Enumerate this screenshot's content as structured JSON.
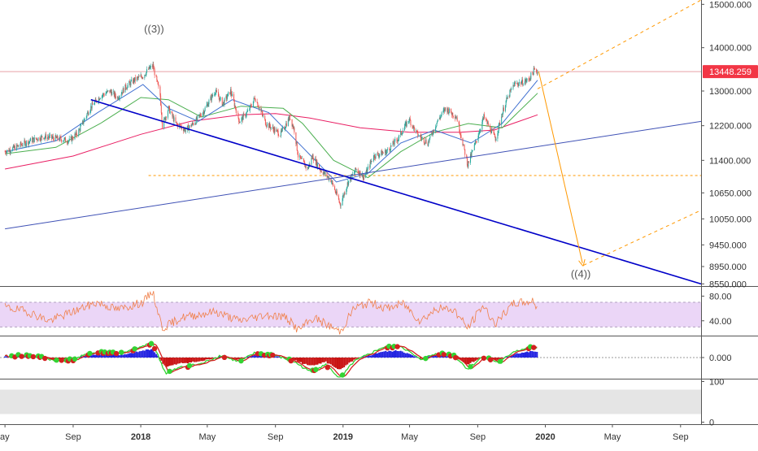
{
  "chart_data": [
    {
      "panel": "price",
      "type": "candlestick",
      "title": "",
      "scale": "linear",
      "grid": false,
      "y_tick_labels": [
        "15000.000",
        "14000.000",
        "13000.000",
        "12200.000",
        "11400.000",
        "10650.000",
        "10050.000",
        "9450.000",
        "8950.000",
        "8550.000"
      ],
      "y_ticks": [
        15000,
        14000,
        13000,
        12200,
        11400,
        10650,
        10050,
        9450,
        8950,
        8550
      ],
      "ylim": [
        8500,
        15100
      ],
      "last_price": 13448.259,
      "last_price_label": "13448.259",
      "annotations": [
        {
          "text": "((3))",
          "x": "2018-01-25",
          "y": 14350
        },
        {
          "text": "((4))",
          "x": "2020-03-05",
          "y": 8700
        }
      ],
      "price_path": [
        [
          "2017-05-01",
          11600
        ],
        [
          "2017-05-20",
          11700
        ],
        [
          "2017-06-15",
          11850
        ],
        [
          "2017-07-10",
          11950
        ],
        [
          "2017-08-05",
          11900
        ],
        [
          "2017-08-25",
          11850
        ],
        [
          "2017-09-10",
          12050
        ],
        [
          "2017-10-01",
          12600
        ],
        [
          "2017-10-20",
          12880
        ],
        [
          "2017-11-06",
          13000
        ],
        [
          "2017-11-20",
          12850
        ],
        [
          "2017-12-05",
          13100
        ],
        [
          "2017-12-20",
          13250
        ],
        [
          "2018-01-05",
          13350
        ],
        [
          "2018-01-15",
          13500
        ],
        [
          "2018-01-23",
          13580
        ],
        [
          "2018-02-05",
          12900
        ],
        [
          "2018-02-09",
          12200
        ],
        [
          "2018-02-20",
          12600
        ],
        [
          "2018-03-05",
          12250
        ],
        [
          "2018-03-23",
          12100
        ],
        [
          "2018-04-10",
          12300
        ],
        [
          "2018-04-25",
          12550
        ],
        [
          "2018-05-15",
          13000
        ],
        [
          "2018-05-29",
          12700
        ],
        [
          "2018-06-12",
          13000
        ],
        [
          "2018-06-28",
          12300
        ],
        [
          "2018-07-15",
          12550
        ],
        [
          "2018-07-26",
          12850
        ],
        [
          "2018-08-15",
          12250
        ],
        [
          "2018-09-10",
          12000
        ],
        [
          "2018-09-27",
          12400
        ],
        [
          "2018-10-05",
          12100
        ],
        [
          "2018-10-12",
          11500
        ],
        [
          "2018-10-29",
          11200
        ],
        [
          "2018-11-07",
          11500
        ],
        [
          "2018-11-20",
          11200
        ],
        [
          "2018-12-10",
          10950
        ],
        [
          "2018-12-27",
          10380
        ],
        [
          "2019-01-10",
          10900
        ],
        [
          "2019-01-25",
          11200
        ],
        [
          "2019-02-08",
          11000
        ],
        [
          "2019-02-25",
          11500
        ],
        [
          "2019-03-20",
          11600
        ],
        [
          "2019-04-10",
          11900
        ],
        [
          "2019-04-30",
          12350
        ],
        [
          "2019-05-15",
          12000
        ],
        [
          "2019-06-03",
          11800
        ],
        [
          "2019-06-20",
          12300
        ],
        [
          "2019-07-05",
          12600
        ],
        [
          "2019-07-25",
          12400
        ],
        [
          "2019-08-14",
          11300
        ],
        [
          "2019-08-28",
          11800
        ],
        [
          "2019-09-12",
          12400
        ],
        [
          "2019-10-03",
          11900
        ],
        [
          "2019-10-20",
          12700
        ],
        [
          "2019-11-05",
          13150
        ],
        [
          "2019-11-20",
          13200
        ],
        [
          "2019-12-01",
          13250
        ],
        [
          "2019-12-12",
          13480
        ],
        [
          "2019-12-18",
          13448
        ]
      ],
      "moving_averages": [
        {
          "color": "#e91e63",
          "points": [
            [
              "2017-05-01",
              11200
            ],
            [
              "2017-09-01",
              11500
            ],
            [
              "2018-01-01",
              12000
            ],
            [
              "2018-04-01",
              12300
            ],
            [
              "2018-07-01",
              12450
            ],
            [
              "2018-09-01",
              12480
            ],
            [
              "2018-11-01",
              12380
            ],
            [
              "2019-02-01",
              12150
            ],
            [
              "2019-05-01",
              12050
            ],
            [
              "2019-08-01",
              12050
            ],
            [
              "2019-10-01",
              12100
            ],
            [
              "2019-12-18",
              12450
            ]
          ]
        },
        {
          "color": "#4caf50",
          "points": [
            [
              "2017-05-01",
              11550
            ],
            [
              "2017-08-01",
              11700
            ],
            [
              "2017-10-20",
              12250
            ],
            [
              "2018-01-01",
              12850
            ],
            [
              "2018-02-20",
              12800
            ],
            [
              "2018-04-20",
              12400
            ],
            [
              "2018-07-01",
              12650
            ],
            [
              "2018-09-15",
              12600
            ],
            [
              "2018-10-20",
              12250
            ],
            [
              "2018-12-15",
              11400
            ],
            [
              "2019-02-15",
              11000
            ],
            [
              "2019-04-15",
              11600
            ],
            [
              "2019-06-15",
              12050
            ],
            [
              "2019-08-15",
              12250
            ],
            [
              "2019-10-15",
              12150
            ],
            [
              "2019-12-18",
              12950
            ]
          ]
        },
        {
          "color": "#3f6fd0",
          "points": [
            [
              "2017-05-01",
              11600
            ],
            [
              "2017-08-01",
              11850
            ],
            [
              "2017-10-15",
              12500
            ],
            [
              "2018-01-05",
              13150
            ],
            [
              "2018-02-20",
              12600
            ],
            [
              "2018-04-15",
              12300
            ],
            [
              "2018-06-15",
              12800
            ],
            [
              "2018-08-20",
              12500
            ],
            [
              "2018-10-20",
              11700
            ],
            [
              "2018-12-20",
              10900
            ],
            [
              "2019-02-15",
              11100
            ],
            [
              "2019-04-15",
              11800
            ],
            [
              "2019-06-15",
              12100
            ],
            [
              "2019-08-20",
              11800
            ],
            [
              "2019-10-15",
              12250
            ],
            [
              "2019-12-18",
              13250
            ]
          ]
        }
      ],
      "trend_lines": [
        {
          "name": "",
          "color": "#0000c8",
          "points": [
            [
              "2017-10-03",
              12800
            ],
            [
              "2020-10-08",
              8550
            ]
          ]
        },
        {
          "name": "",
          "color": "#3f51b5",
          "points": [
            [
              "2017-05-01",
              9820
            ],
            [
              "2020-10-08",
              12300
            ]
          ]
        },
        {
          "name": "",
          "color": "#ff9800",
          "dashed": true,
          "points": [
            [
              "2019-12-18",
              13050
            ],
            [
              "2020-10-08",
              15100
            ]
          ]
        },
        {
          "name": "",
          "color": "#ff9800",
          "dashed": true,
          "points": [
            [
              "2020-03-10",
              8980
            ],
            [
              "2020-10-08",
              10250
            ]
          ]
        },
        {
          "name": "",
          "color": "#ff9800",
          "dashed": false,
          "arrow": true,
          "points": [
            [
              "2019-12-20",
              13450
            ],
            [
              "2020-03-08",
              9030
            ]
          ]
        }
      ],
      "horizontal_levels": [
        {
          "value": 13448,
          "color": "#e8a0a8",
          "dashed": false
        },
        {
          "value": 11050,
          "color": "#ff9800",
          "dashed": true,
          "from": "2018-01-15"
        }
      ]
    },
    {
      "panel": "rsi",
      "type": "line",
      "title": "",
      "y_tick_labels": [
        "80.00",
        "40.00"
      ],
      "y_ticks": [
        80,
        40
      ],
      "ylim": [
        16,
        95
      ],
      "band": [
        30,
        70
      ],
      "band_color": "#ebd6f7",
      "color": "#f0804a",
      "points": [
        [
          "2017-05-01",
          62
        ],
        [
          "2017-06-10",
          55
        ],
        [
          "2017-07-20",
          40
        ],
        [
          "2017-09-01",
          55
        ],
        [
          "2017-10-15",
          70
        ],
        [
          "2017-11-20",
          58
        ],
        [
          "2018-01-05",
          70
        ],
        [
          "2018-01-22",
          88
        ],
        [
          "2018-02-09",
          28
        ],
        [
          "2018-03-15",
          45
        ],
        [
          "2018-05-15",
          55
        ],
        [
          "2018-06-28",
          40
        ],
        [
          "2018-08-15",
          50
        ],
        [
          "2018-09-20",
          46
        ],
        [
          "2018-10-12",
          25
        ],
        [
          "2018-11-10",
          45
        ],
        [
          "2018-12-27",
          22
        ],
        [
          "2019-01-20",
          60
        ],
        [
          "2019-02-20",
          70
        ],
        [
          "2019-03-20",
          60
        ],
        [
          "2019-04-20",
          68
        ],
        [
          "2019-05-20",
          40
        ],
        [
          "2019-06-20",
          60
        ],
        [
          "2019-07-20",
          58
        ],
        [
          "2019-08-14",
          28
        ],
        [
          "2019-09-10",
          65
        ],
        [
          "2019-10-03",
          35
        ],
        [
          "2019-11-05",
          68
        ],
        [
          "2019-12-12",
          72
        ],
        [
          "2019-12-18",
          58
        ]
      ]
    },
    {
      "panel": "oscillator",
      "type": "histogram",
      "title": "",
      "y_tick_labels": [
        "0.000"
      ],
      "y_ticks": [
        0
      ],
      "ylim": [
        -1,
        1
      ],
      "colors": {
        "up": "#33d333",
        "down": "#d32020",
        "up_hist": "#2020e0",
        "down_hist": "#c81010"
      },
      "points": [
        [
          "2017-05-01",
          0.05
        ],
        [
          "2017-06-01",
          0.1
        ],
        [
          "2017-07-01",
          0.05
        ],
        [
          "2017-08-01",
          -0.15
        ],
        [
          "2017-09-01",
          -0.1
        ],
        [
          "2017-10-01",
          0.2
        ],
        [
          "2017-11-01",
          0.25
        ],
        [
          "2017-12-01",
          0.2
        ],
        [
          "2018-01-22",
          0.7
        ],
        [
          "2018-02-15",
          -0.75
        ],
        [
          "2018-03-15",
          -0.45
        ],
        [
          "2018-04-20",
          -0.3
        ],
        [
          "2018-05-25",
          0.1
        ],
        [
          "2018-06-28",
          -0.2
        ],
        [
          "2018-07-25",
          0.2
        ],
        [
          "2018-09-01",
          0.1
        ],
        [
          "2018-10-05",
          -0.2
        ],
        [
          "2018-11-01",
          -0.65
        ],
        [
          "2018-12-01",
          -0.35
        ],
        [
          "2018-12-27",
          -1.0
        ],
        [
          "2019-01-20",
          -0.2
        ],
        [
          "2019-02-20",
          0.2
        ],
        [
          "2019-03-10",
          0.45
        ],
        [
          "2019-04-15",
          0.55
        ],
        [
          "2019-05-20",
          -0.1
        ],
        [
          "2019-06-20",
          0.2
        ],
        [
          "2019-07-20",
          0.1
        ],
        [
          "2019-08-14",
          -0.55
        ],
        [
          "2019-09-10",
          0.05
        ],
        [
          "2019-10-10",
          -0.25
        ],
        [
          "2019-11-05",
          0.3
        ],
        [
          "2019-12-12",
          0.5
        ],
        [
          "2019-12-18",
          0.4
        ]
      ]
    },
    {
      "panel": "empty-indicator",
      "type": "area",
      "title": "",
      "y_tick_labels": [
        "100",
        "0"
      ],
      "y_ticks": [
        100,
        0
      ],
      "ylim": [
        -5,
        105
      ],
      "band_color": "#e5e5e5"
    }
  ],
  "x_axis": {
    "type": "date",
    "range": [
      "2017-04-22",
      "2020-10-08"
    ],
    "tick_labels": [
      {
        "label": "ay",
        "date": "2017-05-01"
      },
      {
        "label": "Sep",
        "date": "2017-09-01"
      },
      {
        "label": "2018",
        "date": "2018-01-01"
      },
      {
        "label": "May",
        "date": "2018-05-01"
      },
      {
        "label": "Sep",
        "date": "2018-09-01"
      },
      {
        "label": "2019",
        "date": "2019-01-01"
      },
      {
        "label": "May",
        "date": "2019-05-01"
      },
      {
        "label": "Sep",
        "date": "2019-09-01"
      },
      {
        "label": "2020",
        "date": "2020-01-01"
      },
      {
        "label": "May",
        "date": "2020-05-01"
      },
      {
        "label": "Sep",
        "date": "2020-09-01"
      }
    ]
  },
  "colors": {
    "last_price_badge": "#f23645",
    "axis_text": "#333333",
    "separator": "#555555"
  }
}
